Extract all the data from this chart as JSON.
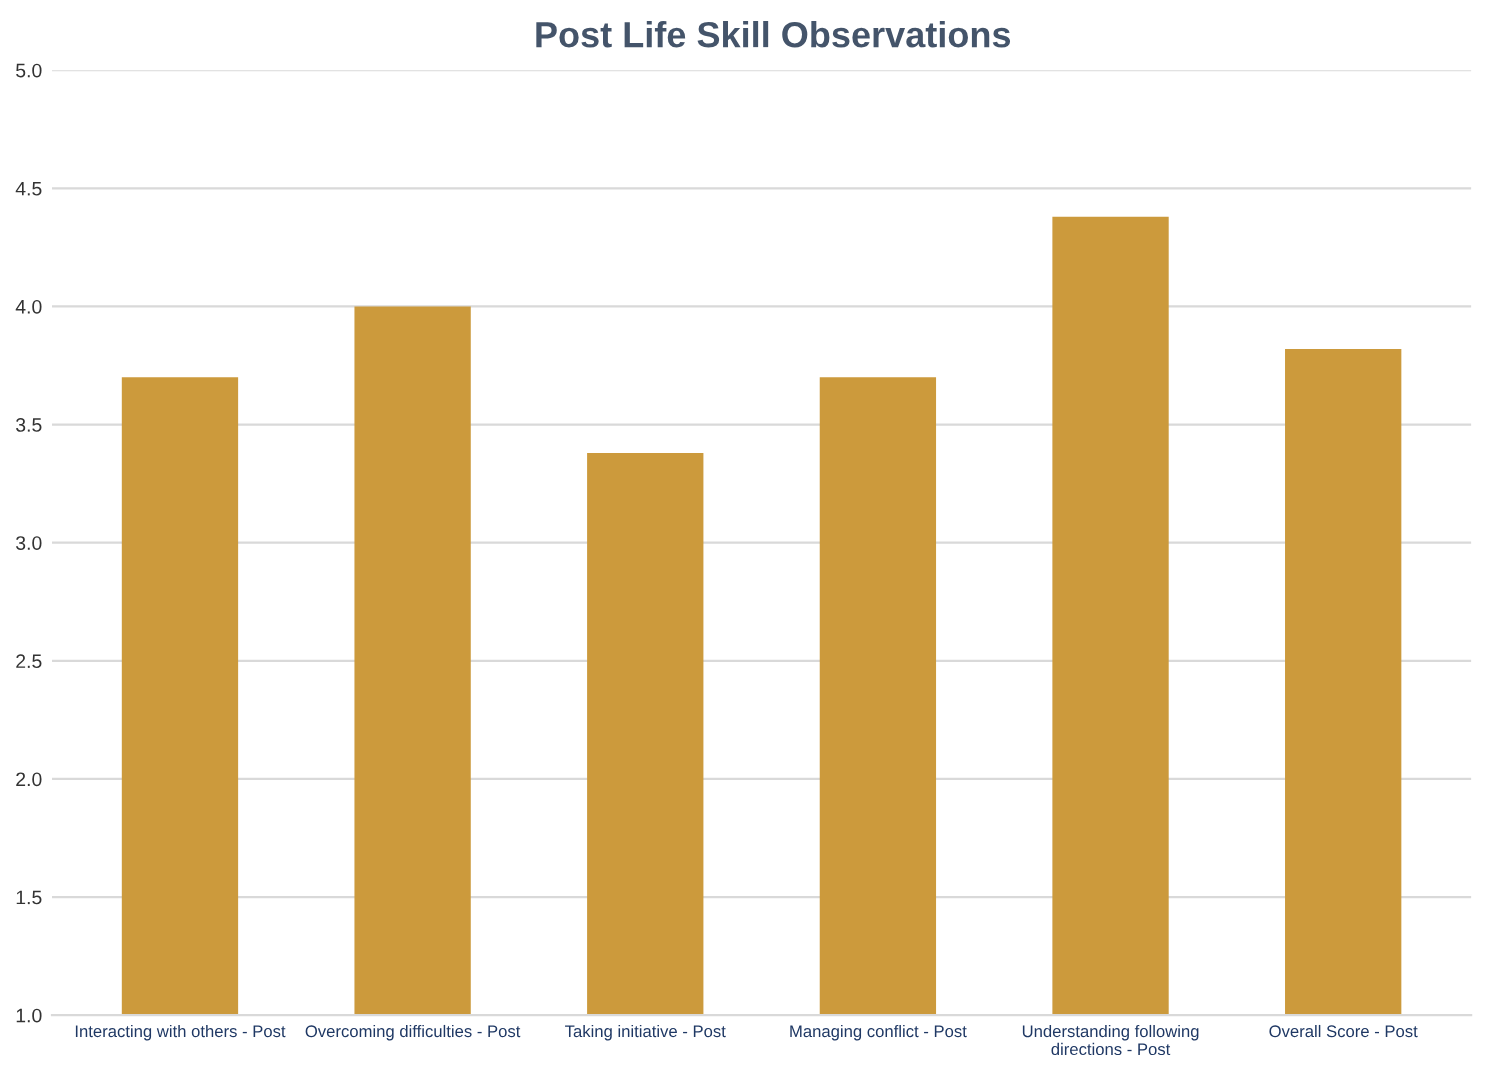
{
  "chart_data": {
    "type": "bar",
    "title": "Post Life Skill Observations",
    "categories": [
      "Interacting with others - Post",
      "Overcoming difficulties - Post",
      "Taking initiative - Post",
      "Managing conflict - Post",
      "Understanding following\ndirections - Post",
      "Overall Score - Post"
    ],
    "values": [
      3.7,
      4.0,
      3.38,
      3.7,
      4.38,
      3.82
    ],
    "color": "#cc9a3c",
    "ylim": [
      1.0,
      5.0
    ],
    "yticks": [
      {
        "value": 1.0,
        "label": "1.0"
      },
      {
        "value": 1.5,
        "label": "1.5"
      },
      {
        "value": 2.0,
        "label": "2.0"
      },
      {
        "value": 2.5,
        "label": "2.5"
      },
      {
        "value": 3.0,
        "label": "3.0"
      },
      {
        "value": 3.5,
        "label": "3.5"
      },
      {
        "value": 4.0,
        "label": "4.0"
      },
      {
        "value": 4.5,
        "label": "4.5"
      },
      {
        "value": 5.0,
        "label": "5.0"
      }
    ],
    "grid": "y"
  }
}
